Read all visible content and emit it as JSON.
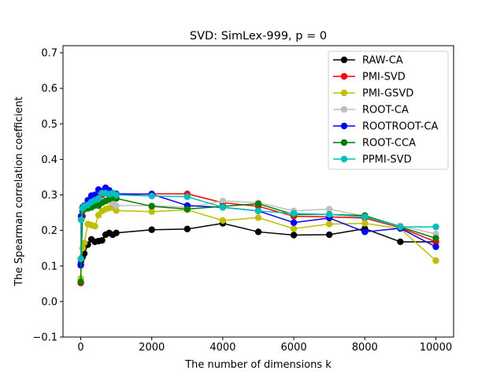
{
  "chart_data": {
    "type": "line",
    "title": "SVD: SimLex-999, p = 0",
    "xlabel": "The number of dimensions k",
    "ylabel": "The Spearman correlation coefficient",
    "xlim": [
      -500,
      10500
    ],
    "ylim": [
      -0.1,
      0.72
    ],
    "xticks": [
      0,
      2000,
      4000,
      6000,
      8000,
      10000
    ],
    "yticks": [
      -0.1,
      0.0,
      0.1,
      0.2,
      0.3,
      0.4,
      0.5,
      0.6,
      0.7
    ],
    "xtick_labels": [
      "0",
      "2000",
      "4000",
      "6000",
      "8000",
      "10000"
    ],
    "ytick_labels": [
      "−0.1",
      "0.0",
      "0.1",
      "0.2",
      "0.3",
      "0.4",
      "0.5",
      "0.6",
      "0.7"
    ],
    "legend_position": "top-right",
    "series": [
      {
        "name": "RAW-CA",
        "color": "#000000",
        "x": [
          1,
          10,
          50,
          100,
          200,
          300,
          400,
          500,
          600,
          700,
          800,
          900,
          1000,
          2000,
          3000,
          4000,
          5000,
          6000,
          7000,
          8000,
          9000,
          10000
        ],
        "y": [
          0.104,
          0.115,
          0.125,
          0.135,
          0.16,
          0.175,
          0.168,
          0.17,
          0.172,
          0.188,
          0.193,
          0.188,
          0.193,
          0.202,
          0.204,
          0.22,
          0.196,
          0.187,
          0.188,
          0.205,
          0.168,
          0.168
        ]
      },
      {
        "name": "PMI-SVD",
        "color": "#ff0000",
        "x": [
          1,
          10,
          50,
          100,
          200,
          300,
          400,
          500,
          600,
          700,
          800,
          900,
          1000,
          2000,
          3000,
          4000,
          5000,
          6000,
          7000,
          8000,
          9000,
          10000
        ],
        "y": [
          0.052,
          0.12,
          0.24,
          0.26,
          0.275,
          0.285,
          0.29,
          0.295,
          0.3,
          0.305,
          0.3,
          0.298,
          0.3,
          0.303,
          0.303,
          0.278,
          0.268,
          0.24,
          0.238,
          0.235,
          0.208,
          0.168
        ]
      },
      {
        "name": "PMI-GSVD",
        "color": "#bfbf00",
        "x": [
          1,
          10,
          50,
          100,
          200,
          300,
          400,
          500,
          600,
          700,
          800,
          900,
          1000,
          2000,
          3000,
          4000,
          5000,
          6000,
          7000,
          8000,
          9000,
          10000
        ],
        "y": [
          0.065,
          0.12,
          0.15,
          0.165,
          0.218,
          0.215,
          0.212,
          0.243,
          0.255,
          0.26,
          0.263,
          0.265,
          0.256,
          0.253,
          0.258,
          0.228,
          0.236,
          0.205,
          0.218,
          0.22,
          0.205,
          0.115
        ]
      },
      {
        "name": "ROOT-CA",
        "color": "#bfbfbf",
        "x": [
          1,
          10,
          50,
          100,
          200,
          300,
          400,
          500,
          600,
          700,
          800,
          900,
          1000,
          2000,
          3000,
          4000,
          5000,
          6000,
          7000,
          8000,
          9000,
          10000
        ],
        "y": [
          0.12,
          0.23,
          0.258,
          0.262,
          0.268,
          0.272,
          0.275,
          0.278,
          0.28,
          0.282,
          0.283,
          0.278,
          0.27,
          0.27,
          0.265,
          0.283,
          0.278,
          0.255,
          0.26,
          0.24,
          0.213,
          0.19
        ]
      },
      {
        "name": "ROOTROOT-CA",
        "color": "#0000ff",
        "x": [
          1,
          10,
          50,
          100,
          200,
          300,
          400,
          500,
          600,
          700,
          800,
          900,
          1000,
          2000,
          3000,
          4000,
          5000,
          6000,
          7000,
          8000,
          9000,
          10000
        ],
        "y": [
          0.102,
          0.24,
          0.265,
          0.27,
          0.285,
          0.298,
          0.3,
          0.315,
          0.31,
          0.32,
          0.313,
          0.305,
          0.303,
          0.302,
          0.27,
          0.265,
          0.255,
          0.222,
          0.235,
          0.196,
          0.206,
          0.154
        ]
      },
      {
        "name": "ROOT-CCA",
        "color": "#008000",
        "x": [
          1,
          10,
          50,
          100,
          200,
          300,
          400,
          500,
          600,
          700,
          800,
          900,
          1000,
          2000,
          3000,
          4000,
          5000,
          6000,
          7000,
          8000,
          9000,
          10000
        ],
        "y": [
          0.055,
          0.12,
          0.255,
          0.262,
          0.262,
          0.265,
          0.27,
          0.27,
          0.278,
          0.283,
          0.288,
          0.292,
          0.29,
          0.268,
          0.26,
          0.268,
          0.275,
          0.245,
          0.245,
          0.242,
          0.21,
          0.178
        ]
      },
      {
        "name": "PPMI-SVD",
        "color": "#00bfbf",
        "x": [
          1,
          10,
          50,
          100,
          200,
          300,
          400,
          500,
          600,
          700,
          800,
          900,
          1000,
          2000,
          3000,
          4000,
          5000,
          6000,
          7000,
          8000,
          9000,
          10000
        ],
        "y": [
          0.12,
          0.23,
          0.262,
          0.268,
          0.272,
          0.28,
          0.285,
          0.29,
          0.305,
          0.305,
          0.302,
          0.305,
          0.3,
          0.297,
          0.295,
          0.265,
          0.255,
          0.248,
          0.245,
          0.238,
          0.21,
          0.21
        ]
      }
    ]
  }
}
